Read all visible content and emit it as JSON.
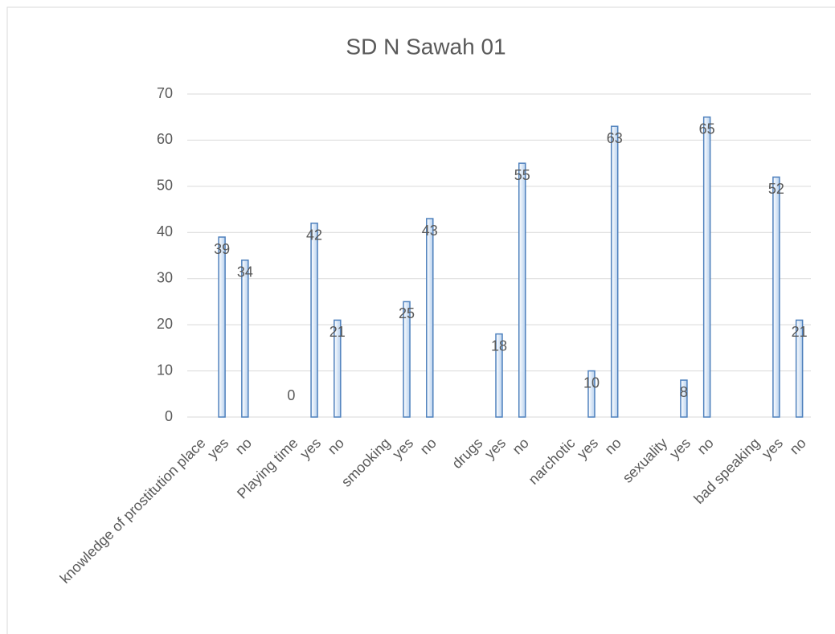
{
  "chart_data": {
    "type": "bar",
    "title": "SD N Sawah 01",
    "categories": [
      "knowledge of prostitution place",
      "yes",
      "no",
      null,
      "Playing time",
      "yes",
      "no",
      null,
      "smooking",
      "yes",
      "no",
      null,
      "drugs",
      "yes",
      "no",
      null,
      "narchotic",
      "yes",
      "no",
      null,
      "sexuality",
      "yes",
      "no",
      null,
      "bad speaking",
      "yes",
      "no"
    ],
    "values": [
      null,
      39,
      34,
      null,
      0,
      42,
      21,
      null,
      null,
      25,
      43,
      null,
      null,
      18,
      55,
      null,
      null,
      10,
      63,
      null,
      null,
      8,
      65,
      null,
      null,
      52,
      21
    ],
    "color": "#4f81bd",
    "ylim": [
      0,
      70
    ],
    "yticks": [
      0,
      10,
      20,
      30,
      40,
      50,
      60,
      70
    ],
    "grid": true
  }
}
